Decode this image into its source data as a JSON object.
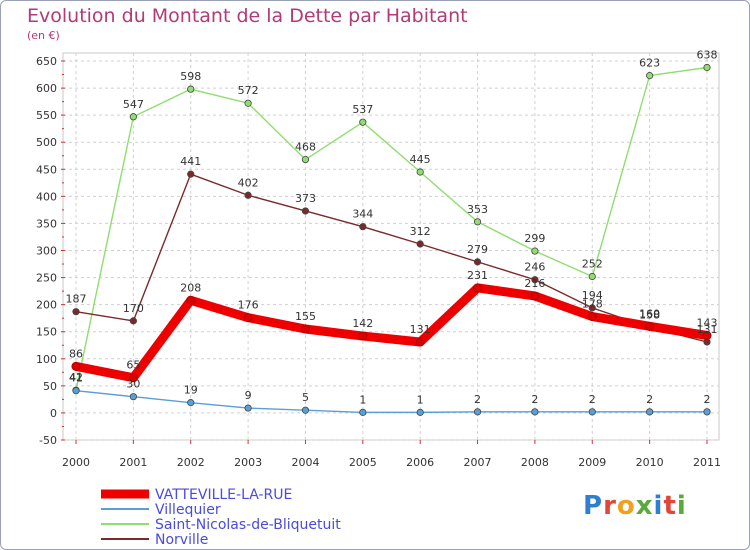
{
  "header": {
    "title": "Evolution du Montant de la Dette par Habitant",
    "unit": "(en €)"
  },
  "logo": {
    "text": "Proxiti",
    "colors": [
      "#2f7fd0",
      "#e0463a",
      "#f0a020",
      "#5aaa3a",
      "#2f7fd0",
      "#e0463a",
      "#5aaa3a"
    ]
  },
  "chart_data": {
    "type": "line",
    "title": "Evolution du Montant de la Dette par Habitant",
    "ylabel": "(en €)",
    "x": [
      "2000",
      "2001",
      "2002",
      "2003",
      "2004",
      "2005",
      "2006",
      "2007",
      "2008",
      "2009",
      "2010",
      "2011"
    ],
    "ylim": [
      -50,
      650
    ],
    "yticks": [
      -50,
      0,
      50,
      100,
      150,
      200,
      250,
      300,
      350,
      400,
      450,
      500,
      550,
      600,
      650
    ],
    "grid": true,
    "legend_position": "bottom-left",
    "series": [
      {
        "name": "VATTEVILLE-LA-RUE",
        "color": "#ee0000",
        "values": [
          86,
          65,
          208,
          176,
          155,
          142,
          131,
          231,
          216,
          178,
          160,
          143
        ],
        "labels": [
          "86",
          "65",
          "208",
          "176",
          "155",
          "142",
          "131",
          "231",
          "216",
          "178",
          "160",
          "143"
        ]
      },
      {
        "name": "Villequier",
        "color": "#5a9fd4",
        "values": [
          41,
          30,
          19,
          9,
          5,
          1,
          1,
          2,
          2,
          2,
          2,
          2
        ],
        "labels": [
          "41",
          "30",
          "19",
          "9",
          "5",
          "1",
          "1",
          "2",
          "2",
          "2",
          "2",
          "2"
        ]
      },
      {
        "name": "Saint-Nicolas-de-Bliquetuit",
        "color": "#90dd70",
        "values": [
          42,
          547,
          598,
          572,
          468,
          537,
          445,
          353,
          299,
          252,
          623,
          638
        ],
        "labels": [
          "42",
          "547",
          "598",
          "572",
          "468",
          "537",
          "445",
          "353",
          "299",
          "252",
          "623",
          "638"
        ]
      },
      {
        "name": "Norville",
        "color": "#7a2a2a",
        "values": [
          187,
          170,
          441,
          402,
          373,
          344,
          312,
          279,
          246,
          194,
          158,
          131
        ],
        "labels": [
          "187",
          "170",
          "441",
          "402",
          "373",
          "344",
          "312",
          "279",
          "246",
          "194",
          "158",
          "131"
        ]
      }
    ]
  }
}
